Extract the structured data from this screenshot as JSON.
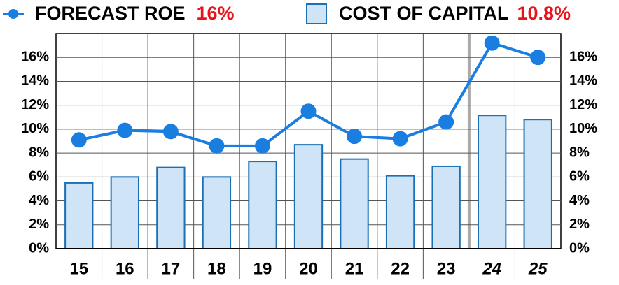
{
  "chart_data": {
    "type": "bar-line",
    "categories": [
      "15",
      "16",
      "17",
      "18",
      "19",
      "20",
      "21",
      "22",
      "23",
      "24",
      "25"
    ],
    "forecast_from_index": 9,
    "series": [
      {
        "name": "FORECAST ROE",
        "legend_value": "16%",
        "kind": "line",
        "color": "#1a7de0",
        "values": [
          9.1,
          9.9,
          9.8,
          8.6,
          8.6,
          11.5,
          9.4,
          9.2,
          10.6,
          17.2,
          16
        ]
      },
      {
        "name": "COST OF CAPITAL",
        "legend_value": "10.8%",
        "kind": "bar",
        "color": "#cfe5f7",
        "stroke": "#1a6fb5",
        "values": [
          5.5,
          6.0,
          6.8,
          6.0,
          7.3,
          8.7,
          7.5,
          6.1,
          6.9,
          11.15,
          10.8
        ]
      }
    ],
    "legend_value_color": "#e8141b",
    "ylim": [
      0,
      18
    ],
    "yticks": [
      {
        "value": 0,
        "label": "0%"
      },
      {
        "value": 2,
        "label": "2%"
      },
      {
        "value": 4,
        "label": "4%"
      },
      {
        "value": 6,
        "label": "6%"
      },
      {
        "value": 8,
        "label": "8%"
      },
      {
        "value": 10,
        "label": "10%"
      },
      {
        "value": 12,
        "label": "12%"
      },
      {
        "value": 14,
        "label": "14%"
      },
      {
        "value": 16,
        "label": "16%"
      }
    ],
    "grid": true
  }
}
